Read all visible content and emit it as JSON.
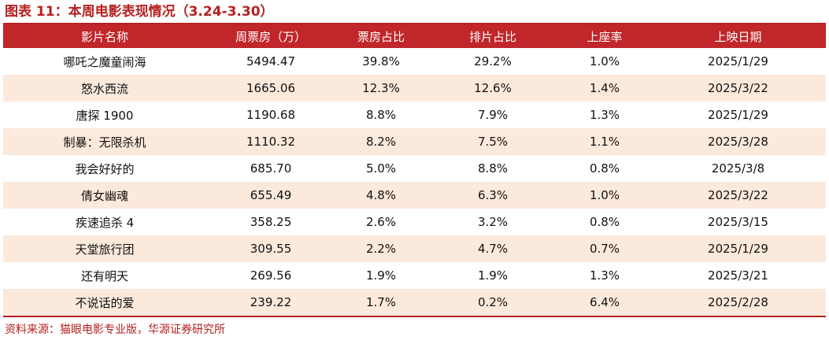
{
  "title": "图表 11：本周电影表现情况（3.24-3.30）",
  "table": {
    "headers": [
      "影片名称",
      "周票房（万）",
      "票房占比",
      "排片占比",
      "上座率",
      "上映日期"
    ],
    "rows": [
      [
        "哪吒之魔童闹海",
        "5494.47",
        "39.8%",
        "29.2%",
        "1.0%",
        "2025/1/29"
      ],
      [
        "怒水西流",
        "1665.06",
        "12.3%",
        "12.6%",
        "1.4%",
        "2025/3/22"
      ],
      [
        "唐探 1900",
        "1190.68",
        "8.8%",
        "7.9%",
        "1.3%",
        "2025/1/29"
      ],
      [
        "制暴：无限杀机",
        "1110.32",
        "8.2%",
        "7.5%",
        "1.1%",
        "2025/3/28"
      ],
      [
        "我会好好的",
        "685.70",
        "5.0%",
        "8.8%",
        "0.8%",
        "2025/3/8"
      ],
      [
        "倩女幽魂",
        "655.49",
        "4.8%",
        "6.3%",
        "1.0%",
        "2025/3/22"
      ],
      [
        "疾速追杀 4",
        "358.25",
        "2.6%",
        "3.2%",
        "0.8%",
        "2025/3/15"
      ],
      [
        "天堂旅行团",
        "309.55",
        "2.2%",
        "4.7%",
        "0.7%",
        "2025/1/29"
      ],
      [
        "还有明天",
        "269.56",
        "1.9%",
        "1.9%",
        "1.3%",
        "2025/3/21"
      ],
      [
        "不说话的爱",
        "239.22",
        "1.7%",
        "0.2%",
        "6.4%",
        "2025/2/28"
      ]
    ]
  },
  "source": "资料来源：猫眼电影专业版，华源证券研究所",
  "colors": {
    "accent": "#b5201f",
    "header_bg": "#c0262a",
    "stripe_bg": "#fbe9dc"
  }
}
